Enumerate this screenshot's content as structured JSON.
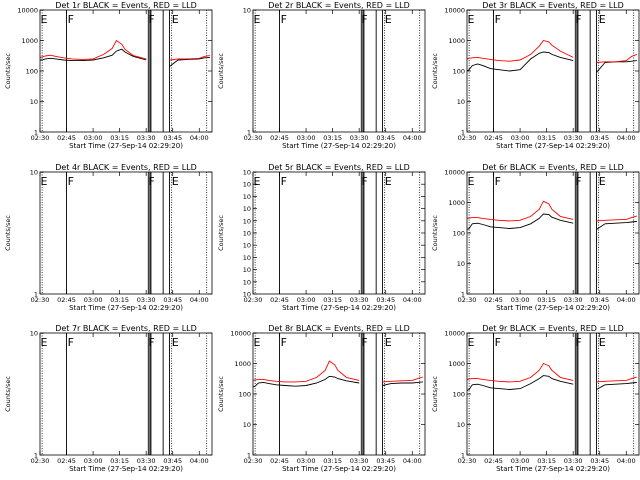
{
  "x_ticks": [
    "02:30",
    "02:45",
    "03:00",
    "03:15",
    "03:30",
    "03:45",
    "04:00"
  ],
  "xlabel": "Start Time (27-Sep-14 02:29:20)",
  "ylabel": "Counts/sec",
  "colors": {
    "events": "#000000",
    "lld": "#ff0000",
    "axes": "#000000"
  },
  "chart_data": [
    {
      "type": "line",
      "panel": 1,
      "title": "Det 1r BLACK = Events, RED = LLD",
      "y_scale": "log",
      "ylim": [
        1,
        10000
      ],
      "y_ticks": [
        {
          "v": 1,
          "t": "1"
        },
        {
          "v": 10,
          "t": "10"
        },
        {
          "v": 100,
          "t": "100"
        },
        {
          "v": 1000,
          "t": "1000"
        },
        {
          "v": 10000,
          "t": "10000"
        }
      ],
      "x": [
        2.5,
        2.52,
        2.55,
        2.6,
        2.65,
        2.72,
        2.8,
        2.9,
        3.0,
        3.1,
        3.18,
        3.22,
        3.27,
        3.3,
        3.38,
        3.5,
        3.6,
        3.72,
        3.8,
        3.9,
        4.0,
        4.05,
        4.1
      ],
      "series": [
        {
          "name": "BLACK = Events",
          "values": [
            230,
            230,
            250,
            260,
            250,
            230,
            220,
            220,
            230,
            270,
            330,
            450,
            520,
            420,
            300,
            230,
            150,
            140,
            230,
            240,
            250,
            270,
            280
          ],
          "gaps": [
            [
              2.5,
              2.52
            ],
            [
              3.52,
              3.66
            ]
          ]
        },
        {
          "name": "RED = LLD",
          "values": [
            280,
            290,
            310,
            330,
            300,
            270,
            250,
            240,
            250,
            350,
            550,
            1000,
            750,
            520,
            320,
            250,
            230,
            230,
            250,
            250,
            260,
            300,
            320
          ],
          "gaps": [
            [
              3.52,
              3.66
            ]
          ]
        }
      ],
      "flags": [
        "E",
        "F",
        "F",
        "E"
      ]
    },
    {
      "type": "line",
      "panel": 2,
      "title": "Det 2r BLACK = Events, RED = LLD",
      "y_scale": "log",
      "ylim": [
        1,
        10
      ],
      "y_ticks": [
        {
          "v": 1,
          "t": "1"
        },
        {
          "v": 10,
          "t": "10"
        }
      ],
      "series": [],
      "flags": [
        "E",
        "F",
        "F",
        "E"
      ]
    },
    {
      "type": "line",
      "panel": 3,
      "title": "Det 3r BLACK = Events, RED = LLD",
      "y_scale": "log",
      "ylim": [
        1,
        10000
      ],
      "y_ticks": [
        {
          "v": 1,
          "t": "1"
        },
        {
          "v": 10,
          "t": "10"
        },
        {
          "v": 100,
          "t": "100"
        },
        {
          "v": 1000,
          "t": "1000"
        },
        {
          "v": 10000,
          "t": "10000"
        }
      ],
      "x": [
        2.5,
        2.52,
        2.55,
        2.6,
        2.65,
        2.72,
        2.8,
        2.9,
        3.0,
        3.1,
        3.18,
        3.22,
        3.27,
        3.3,
        3.38,
        3.5,
        3.6,
        3.72,
        3.8,
        3.9,
        4.0,
        4.05,
        4.1
      ],
      "series": [
        {
          "name": "BLACK = Events",
          "values": [
            100,
            110,
            150,
            170,
            150,
            120,
            110,
            100,
            110,
            250,
            380,
            420,
            400,
            350,
            280,
            220,
            100,
            90,
            190,
            200,
            200,
            210,
            220
          ],
          "gaps": [
            [
              2.5,
              2.52
            ],
            [
              3.52,
              3.66
            ]
          ]
        },
        {
          "name": "RED = LLD",
          "values": [
            250,
            260,
            270,
            280,
            260,
            240,
            220,
            210,
            230,
            350,
            650,
            1000,
            900,
            700,
            450,
            280,
            200,
            190,
            200,
            200,
            220,
            300,
            350
          ],
          "gaps": [
            [
              3.52,
              3.66
            ]
          ]
        }
      ],
      "flags": [
        "E",
        "F",
        "F",
        "E"
      ]
    },
    {
      "type": "line",
      "panel": 4,
      "title": "Det 4r BLACK = Events, RED = LLD",
      "y_scale": "log",
      "ylim": [
        1,
        10
      ],
      "y_ticks": [
        {
          "v": 1,
          "t": "1"
        },
        {
          "v": 10,
          "t": "10"
        }
      ],
      "series": [],
      "flags": [
        "E",
        "F",
        "F",
        "E"
      ]
    },
    {
      "type": "line",
      "panel": 5,
      "title": "Det 5r BLACK = Events, RED = LLD",
      "y_scale": "log",
      "ylim": [
        1,
        1e-10
      ],
      "y_ticks": [
        {
          "v": 1,
          "t": "10"
        },
        {
          "v": 0.1,
          "t": "10"
        },
        {
          "v": 0.01,
          "t": "10"
        },
        {
          "v": 0.001,
          "t": "10"
        },
        {
          "v": 0.0001,
          "t": "10"
        },
        {
          "v": 1e-05,
          "t": "10"
        },
        {
          "v": 1e-06,
          "t": "10"
        },
        {
          "v": 1e-07,
          "t": "10"
        },
        {
          "v": 1e-08,
          "t": "10"
        },
        {
          "v": 1e-09,
          "t": "10"
        },
        {
          "v": 1e-10,
          "t": "10"
        }
      ],
      "series": [],
      "flags": [
        "E",
        "F",
        "F",
        "E"
      ]
    },
    {
      "type": "line",
      "panel": 6,
      "title": "Det 6r BLACK = Events, RED = LLD",
      "y_scale": "log",
      "ylim": [
        1,
        10000
      ],
      "y_ticks": [
        {
          "v": 1,
          "t": "1"
        },
        {
          "v": 10,
          "t": "10"
        },
        {
          "v": 100,
          "t": "100"
        },
        {
          "v": 1000,
          "t": "1000"
        },
        {
          "v": 10000,
          "t": "10000"
        }
      ],
      "x": [
        2.5,
        2.52,
        2.55,
        2.6,
        2.65,
        2.72,
        2.8,
        2.9,
        3.0,
        3.1,
        3.18,
        3.22,
        3.27,
        3.3,
        3.38,
        3.5,
        3.6,
        3.72,
        3.8,
        3.9,
        4.0,
        4.05,
        4.1
      ],
      "series": [
        {
          "name": "BLACK = Events",
          "values": [
            130,
            140,
            200,
            210,
            190,
            160,
            150,
            140,
            150,
            200,
            300,
            420,
            400,
            330,
            260,
            210,
            140,
            130,
            200,
            210,
            220,
            230,
            240
          ],
          "gaps": [
            [
              2.5,
              2.52
            ],
            [
              3.52,
              3.66
            ]
          ]
        },
        {
          "name": "RED = LLD",
          "values": [
            300,
            310,
            320,
            320,
            300,
            280,
            260,
            250,
            260,
            350,
            600,
            1100,
            900,
            600,
            350,
            280,
            260,
            250,
            260,
            270,
            280,
            320,
            360
          ],
          "gaps": [
            [
              3.52,
              3.66
            ]
          ]
        }
      ],
      "flags": [
        "E",
        "F",
        "F",
        "E"
      ]
    },
    {
      "type": "line",
      "panel": 7,
      "title": "Det 7r BLACK = Events, RED = LLD",
      "y_scale": "log",
      "ylim": [
        1,
        10
      ],
      "y_ticks": [
        {
          "v": 1,
          "t": "1"
        },
        {
          "v": 10,
          "t": "10"
        }
      ],
      "series": [],
      "flags": [
        "E",
        "F",
        "F",
        "E"
      ]
    },
    {
      "type": "line",
      "panel": 8,
      "title": "Det 8r BLACK = Events, RED = LLD",
      "y_scale": "log",
      "ylim": [
        1,
        10000
      ],
      "y_ticks": [
        {
          "v": 1,
          "t": "1"
        },
        {
          "v": 10,
          "t": "10"
        },
        {
          "v": 100,
          "t": "100"
        },
        {
          "v": 1000,
          "t": "1000"
        },
        {
          "v": 10000,
          "t": "10000"
        }
      ],
      "x": [
        2.5,
        2.52,
        2.55,
        2.6,
        2.65,
        2.72,
        2.8,
        2.9,
        3.0,
        3.1,
        3.18,
        3.22,
        3.27,
        3.3,
        3.38,
        3.5,
        3.6,
        3.72,
        3.8,
        3.9,
        4.0,
        4.05,
        4.1
      ],
      "series": [
        {
          "name": "BLACK = Events",
          "values": [
            170,
            180,
            230,
            240,
            220,
            200,
            190,
            180,
            190,
            230,
            300,
            380,
            360,
            320,
            270,
            230,
            200,
            190,
            220,
            230,
            230,
            240,
            250
          ],
          "gaps": [
            [
              2.5,
              2.52
            ],
            [
              3.52,
              3.66
            ]
          ]
        },
        {
          "name": "RED = LLD",
          "values": [
            280,
            290,
            300,
            300,
            280,
            260,
            250,
            250,
            260,
            350,
            600,
            1200,
            900,
            600,
            350,
            280,
            260,
            250,
            260,
            270,
            280,
            320,
            360
          ],
          "gaps": [
            [
              3.52,
              3.66
            ]
          ]
        }
      ],
      "flags": [
        "E",
        "F",
        "F",
        "E"
      ]
    },
    {
      "type": "line",
      "panel": 9,
      "title": "Det 9r BLACK = Events, RED = LLD",
      "y_scale": "log",
      "ylim": [
        1,
        10000
      ],
      "y_ticks": [
        {
          "v": 1,
          "t": "1"
        },
        {
          "v": 10,
          "t": "10"
        },
        {
          "v": 100,
          "t": "100"
        },
        {
          "v": 1000,
          "t": "1000"
        },
        {
          "v": 10000,
          "t": "10000"
        }
      ],
      "x": [
        2.5,
        2.52,
        2.55,
        2.6,
        2.65,
        2.72,
        2.8,
        2.9,
        3.0,
        3.1,
        3.18,
        3.22,
        3.27,
        3.3,
        3.38,
        3.5,
        3.6,
        3.72,
        3.8,
        3.9,
        4.0,
        4.05,
        4.1
      ],
      "series": [
        {
          "name": "BLACK = Events",
          "values": [
            130,
            140,
            200,
            210,
            190,
            160,
            150,
            140,
            150,
            220,
            320,
            400,
            380,
            320,
            260,
            210,
            150,
            140,
            200,
            210,
            220,
            230,
            240
          ],
          "gaps": [
            [
              2.5,
              2.52
            ],
            [
              3.52,
              3.66
            ]
          ]
        },
        {
          "name": "RED = LLD",
          "values": [
            300,
            310,
            320,
            320,
            300,
            280,
            260,
            250,
            260,
            350,
            600,
            1000,
            850,
            600,
            350,
            280,
            260,
            250,
            260,
            270,
            280,
            320,
            360
          ],
          "gaps": [
            [
              3.52,
              3.66
            ]
          ]
        }
      ],
      "flags": [
        "E",
        "F",
        "F",
        "E"
      ]
    }
  ]
}
